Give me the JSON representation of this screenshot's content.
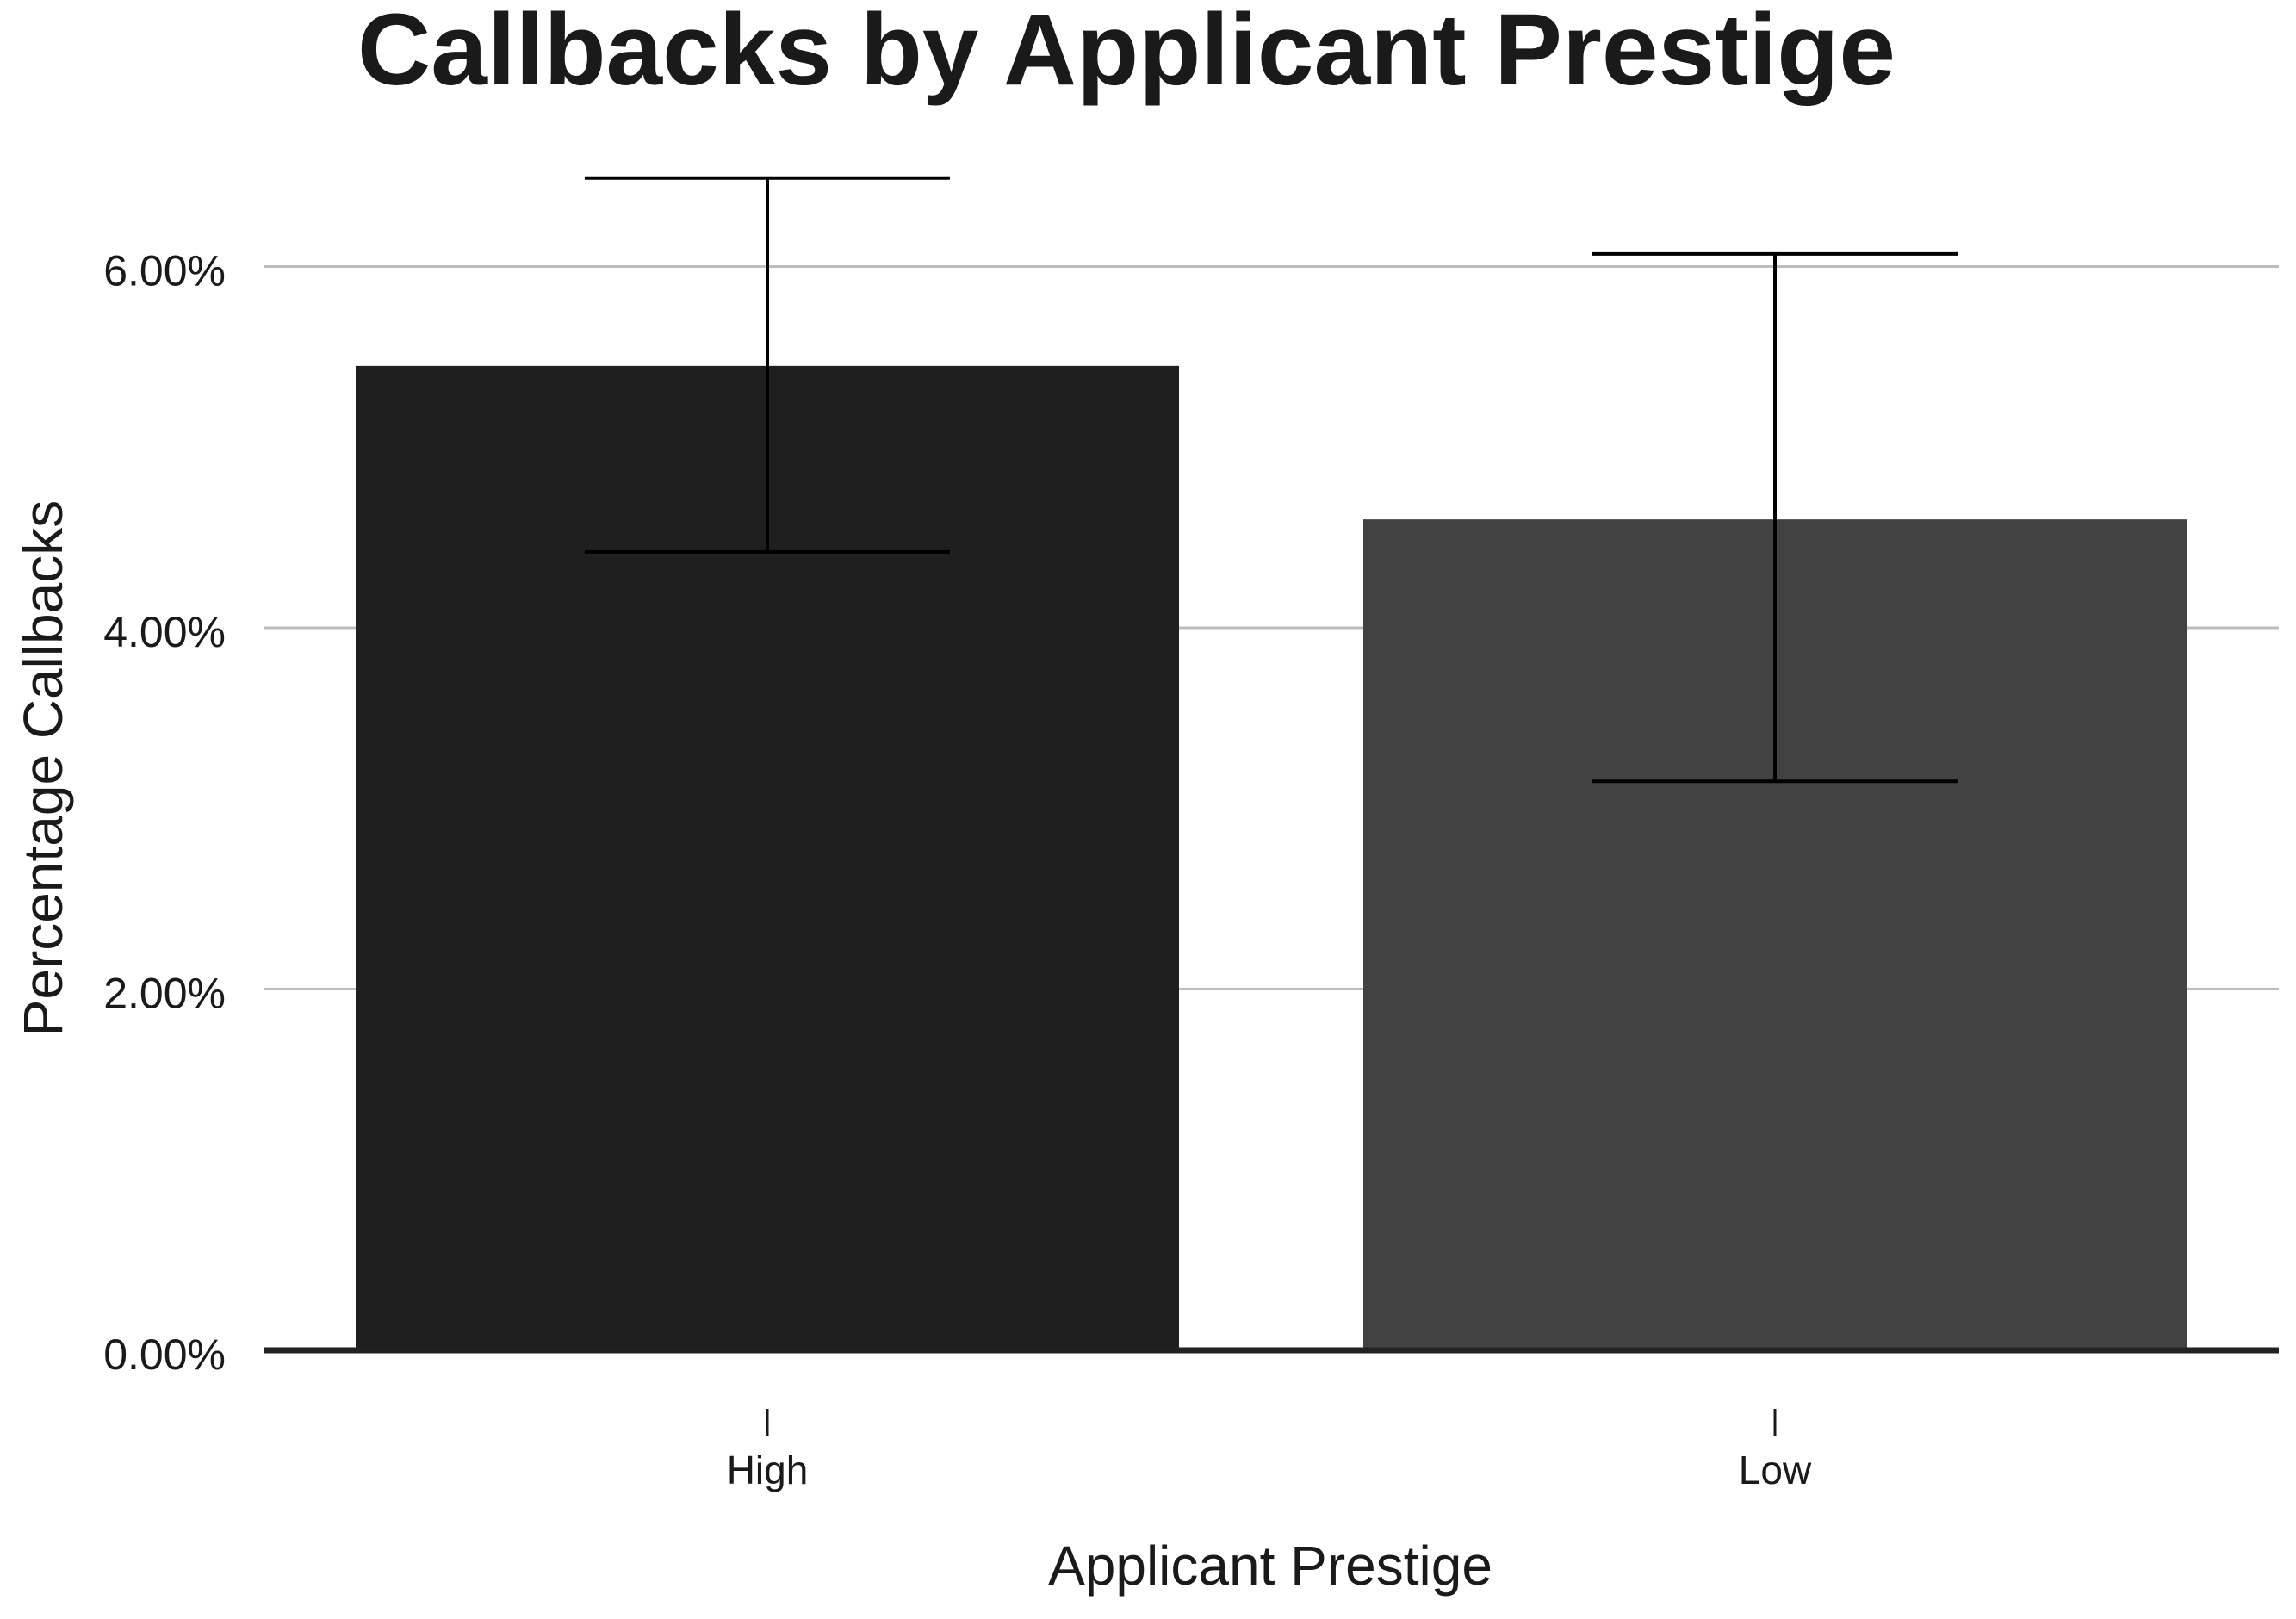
{
  "chart_data": {
    "type": "bar",
    "title": "Callbacks by Applicant Prestige",
    "xlabel": "Applicant Prestige",
    "ylabel": "Percentage Callbacks",
    "categories": [
      "High",
      "Low"
    ],
    "values": [
      5.45,
      4.6
    ],
    "error_bars": [
      {
        "low": 4.42,
        "high": 6.49
      },
      {
        "low": 3.15,
        "high": 6.07
      }
    ],
    "value_format": "percent",
    "ylim": [
      0,
      6.5
    ],
    "yticks": [
      0,
      2,
      4,
      6
    ],
    "ytick_labels": [
      "0.00%",
      "2.00%",
      "4.00%",
      "6.00%"
    ],
    "grid": "horizontal-major",
    "legend": "none",
    "colors": {
      "bars": [
        "#1f1f1f",
        "#424242"
      ],
      "error_bar": "#000000",
      "grid": "#bdbdbd",
      "baseline": "#222222",
      "text": "#1a1a1a"
    }
  }
}
